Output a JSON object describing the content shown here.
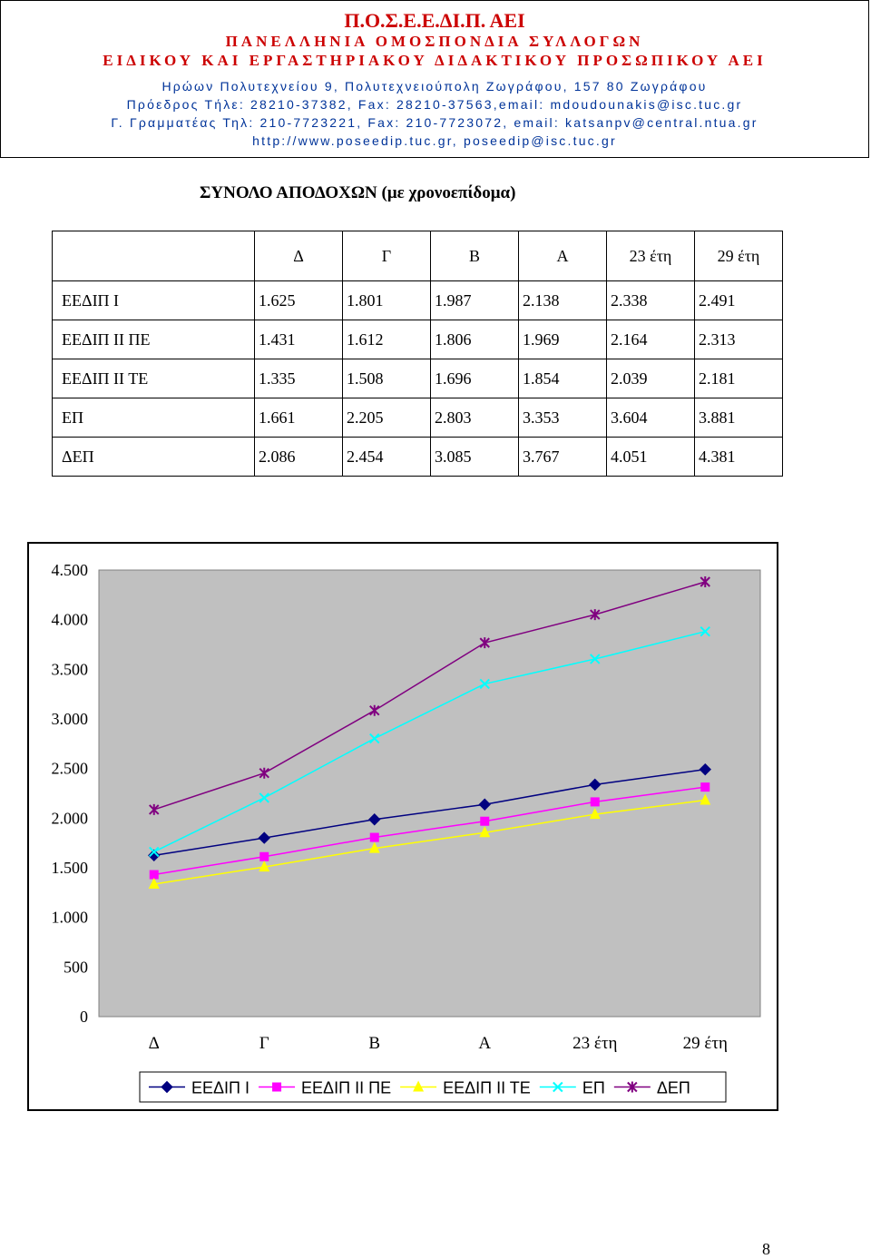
{
  "header": {
    "org": "Π.Ο.Σ.Ε.Ε.ΔΙ.Π. ΑΕΙ",
    "federation": "ΠΑΝΕΛΛΗΝΙΑ ΟΜΟΣΠΟΝΔΙΑ ΣΥΛΛΟΓΩΝ",
    "staff": "ΕΙΔΙΚΟΥ ΚΑΙ ΕΡΓΑΣΤΗΡΙΑΚΟΥ ΔΙΔΑΚΤΙΚΟΥ ΠΡΟΣΩΠΙΚΟΥ ΑΕΙ",
    "address": "Ηρώων Πολυτεχνείου 9, Πολυτεχνειούπολη Ζωγράφου, 157 80 Ζωγράφου",
    "president": "Πρόεδρος Τήλε: 28210-37382, Fax: 28210-37563,email: mdoudounakis@isc.tuc.gr",
    "secretary": "Γ. Γραμματέας Τηλ: 210-7723221, Fax: 210-7723072, email: katsanpv@central.ntua.gr",
    "web": "http://www.poseedip.tuc.gr, poseedip@isc.tuc.gr"
  },
  "summary": {
    "title": "ΣΥΝΟΛΟ ΑΠΟΔΟΧΩΝ (με χρονοεπίδομα)",
    "columns": [
      "Δ",
      "Γ",
      "Β",
      "Α",
      "23 έτη",
      "29 έτη"
    ],
    "rows": [
      {
        "label": "ΕΕΔΙΠ Ι",
        "values": [
          "1.625",
          "1.801",
          "1.987",
          "2.138",
          "2.338",
          "2.491"
        ]
      },
      {
        "label": "ΕΕΔΙΠ ΙΙ ΠΕ",
        "values": [
          "1.431",
          "1.612",
          "1.806",
          "1.969",
          "2.164",
          "2.313"
        ]
      },
      {
        "label": "ΕΕΔΙΠ ΙΙ ΤΕ",
        "values": [
          "1.335",
          "1.508",
          "1.696",
          "1.854",
          "2.039",
          "2.181"
        ]
      },
      {
        "label": "ΕΠ",
        "values": [
          "1.661",
          "2.205",
          "2.803",
          "3.353",
          "3.604",
          "3.881"
        ]
      },
      {
        "label": "ΔΕΠ",
        "values": [
          "2.086",
          "2.454",
          "3.085",
          "3.767",
          "4.051",
          "4.381"
        ]
      }
    ]
  },
  "chart_data": {
    "type": "line",
    "categories": [
      "Δ",
      "Γ",
      "Β",
      "Α",
      "23 έτη",
      "29 έτη"
    ],
    "ylim": [
      0,
      4500
    ],
    "yticks": [
      0,
      500,
      1000,
      1500,
      2000,
      2500,
      3000,
      3500,
      4000,
      4500
    ],
    "ytick_labels": [
      "0",
      "500",
      "1.000",
      "1.500",
      "2.000",
      "2.500",
      "3.000",
      "3.500",
      "4.000",
      "4.500"
    ],
    "plot_background": "#c0c0c0",
    "grid": false,
    "legend": "bottom",
    "series": [
      {
        "name": "ΕΕΔΙΠ Ι",
        "values": [
          1625,
          1801,
          1987,
          2138,
          2338,
          2491
        ],
        "color": "#000080",
        "marker": "diamond"
      },
      {
        "name": "ΕΕΔΙΠ ΙΙ ΠΕ",
        "values": [
          1431,
          1612,
          1806,
          1969,
          2164,
          2313
        ],
        "color": "#ff00ff",
        "marker": "square"
      },
      {
        "name": "ΕΕΔΙΠ ΙΙ ΤΕ",
        "values": [
          1335,
          1508,
          1696,
          1854,
          2039,
          2181
        ],
        "color": "#ffff00",
        "marker": "triangle"
      },
      {
        "name": "ΕΠ",
        "values": [
          1661,
          2205,
          2803,
          3353,
          3604,
          3881
        ],
        "color": "#00ffff",
        "marker": "x"
      },
      {
        "name": "ΔΕΠ",
        "values": [
          2086,
          2454,
          3085,
          3767,
          4051,
          4381
        ],
        "color": "#800080",
        "marker": "star"
      }
    ]
  },
  "page_number": "8"
}
